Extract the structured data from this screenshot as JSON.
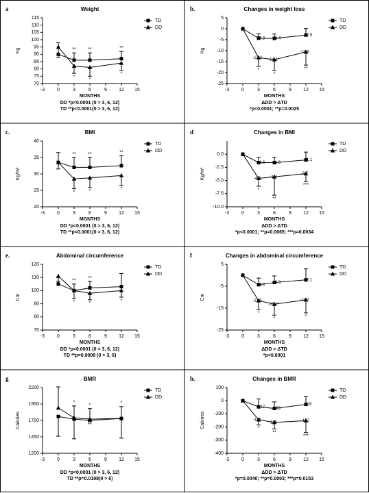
{
  "chart_data": [
    {
      "type": "line",
      "panel": "a",
      "title": "Weight",
      "ylabel": "Kg",
      "xlabel": "MONTHS",
      "x": [
        0,
        3,
        6,
        12
      ],
      "xlim": [
        -3,
        15
      ],
      "xticks": [
        -3,
        0,
        3,
        6,
        9,
        12,
        15
      ],
      "ylim": [
        70,
        115
      ],
      "yticks": [
        70,
        75,
        80,
        85,
        90,
        95,
        100,
        105,
        110,
        115
      ],
      "series": [
        {
          "name": "TD",
          "color": "#000000",
          "marker": "square",
          "error_direction": "up",
          "values": [
            90,
            86,
            86,
            87
          ],
          "errors": [
            8,
            5,
            5,
            5
          ],
          "sig": [
            null,
            "**",
            "**",
            "**"
          ]
        },
        {
          "name": "DD",
          "color": "#000000",
          "marker": "triangle",
          "error_direction": "down",
          "values": [
            95,
            82,
            81,
            84
          ],
          "errors": [
            7,
            5,
            6,
            5
          ],
          "sig": [
            null,
            "*",
            "*",
            "*"
          ]
        }
      ],
      "notes": [
        "DD *p<0.0001 (0 > 3, 6, 12)",
        "TD **p<0.0001(0 > 3, 6, 12)"
      ]
    },
    {
      "type": "line",
      "panel": "b.",
      "title": "Changes in weight loss",
      "ylabel": "Kg",
      "xlabel": "MONTHS",
      "x": [
        0,
        3,
        6,
        12
      ],
      "xlim": [
        -3,
        15
      ],
      "xticks": [
        -3,
        0,
        3,
        6,
        9,
        12,
        15
      ],
      "ylim": [
        -25,
        5
      ],
      "yticks": [
        5,
        0,
        -5,
        -10,
        -15,
        -20,
        -25
      ],
      "series": [
        {
          "name": "TD",
          "color": "#000000",
          "marker": "square",
          "error_direction": "up",
          "values": [
            0,
            -4.3,
            -4.4,
            -2.9
          ],
          "value_labels": [
            null,
            "-4.3",
            "-4.4",
            "-2.9"
          ],
          "errors": [
            null,
            2,
            2,
            3
          ]
        },
        {
          "name": "DD",
          "color": "#000000",
          "marker": "triangle",
          "error_direction": "down",
          "values": [
            0,
            -13.2,
            -14.1,
            -10.6
          ],
          "value_labels": [
            null,
            "-13.2",
            "-14.1",
            "-10.6"
          ],
          "errors": [
            null,
            4,
            5,
            6
          ],
          "sig": [
            null,
            "*",
            "*",
            "**"
          ]
        }
      ],
      "notes": [
        "ΔDD > ΔTD",
        "*p<0.0001; **p=0.0025"
      ]
    },
    {
      "type": "line",
      "panel": "c.",
      "title": "BMI",
      "ylabel": "Kg/m²",
      "xlabel": "MONTHS",
      "x": [
        0,
        3,
        6,
        12
      ],
      "xlim": [
        -3,
        15
      ],
      "xticks": [
        -3,
        0,
        3,
        6,
        9,
        12,
        15
      ],
      "ylim": [
        20,
        40
      ],
      "yticks": [
        20,
        25,
        30,
        35,
        40
      ],
      "series": [
        {
          "name": "TD",
          "color": "#000000",
          "marker": "square",
          "error_direction": "up",
          "values": [
            33.5,
            32,
            32,
            32.5
          ],
          "errors": [
            3,
            3,
            3,
            3
          ],
          "sig": [
            null,
            "**",
            "**",
            "**"
          ]
        },
        {
          "name": "DD",
          "color": "#000000",
          "marker": "triangle",
          "error_direction": "down",
          "values": [
            33.5,
            28.5,
            28.8,
            29.5
          ],
          "errors": [
            2,
            3,
            3,
            3
          ],
          "sig": [
            null,
            "*",
            "*",
            "*"
          ]
        }
      ],
      "notes": [
        "DD *p<0.0001 (0 > 3, 6, 12)",
        "TD **p<0.0001(0 > 3, 6, 12)"
      ]
    },
    {
      "type": "line",
      "panel": "d",
      "title": "Changes in BMI",
      "ylabel": "Kg/m²",
      "xlabel": "MONTHS",
      "x": [
        0,
        3,
        6,
        12
      ],
      "xlim": [
        -3,
        15
      ],
      "xticks": [
        -3,
        0,
        3,
        6,
        9,
        12,
        15
      ],
      "ylim": [
        -10,
        2.5
      ],
      "yticks": [
        {
          "value": 0,
          "label": "0.0"
        },
        {
          "value": -2.5,
          "label": "-2.5"
        },
        {
          "value": -5,
          "label": "-5.0"
        },
        {
          "value": -7.5,
          "label": "-7.5"
        },
        {
          "value": -10,
          "label": "-10.0"
        }
      ],
      "series": [
        {
          "name": "TD",
          "color": "#000000",
          "marker": "square",
          "error_direction": "up",
          "values": [
            0,
            -1.6,
            -1.6,
            -1.1
          ],
          "value_labels": [
            null,
            "-1.6",
            "-1.6",
            "-1.1"
          ],
          "errors": [
            null,
            1,
            1,
            1.5
          ]
        },
        {
          "name": "DD",
          "color": "#000000",
          "marker": "triangle",
          "error_direction": "down",
          "values": [
            0,
            -4.6,
            -4.3,
            -3.7
          ],
          "value_labels": [
            null,
            "-4.6",
            "-4.3",
            "-3.7"
          ],
          "errors": [
            null,
            1.5,
            3.5,
            1.5
          ],
          "sig": [
            null,
            "*",
            "**",
            "***"
          ]
        }
      ],
      "notes": [
        "ΔDD > ΔTD",
        "*p<0.0001; **p=0.0065; ***p=0.0034"
      ]
    },
    {
      "type": "line",
      "panel": "e.",
      "title": "Abdominal circumference",
      "ylabel": "Cm",
      "xlabel": "MONTHS",
      "x": [
        0,
        3,
        6,
        12
      ],
      "xlim": [
        -3,
        15
      ],
      "xticks": [
        -3,
        0,
        3,
        6,
        9,
        12,
        15
      ],
      "ylim": [
        70,
        120
      ],
      "yticks": [
        70,
        80,
        90,
        100,
        110,
        120
      ],
      "series": [
        {
          "name": "TD",
          "color": "#000000",
          "marker": "square",
          "error_direction": "up",
          "values": [
            105,
            100,
            102,
            103
          ],
          "errors": [
            5,
            5,
            5,
            10
          ],
          "sig": [
            null,
            "**",
            "**",
            null
          ]
        },
        {
          "name": "DD",
          "color": "#000000",
          "marker": "triangle",
          "error_direction": "down",
          "values": [
            111,
            100,
            98,
            100
          ],
          "errors": [
            4,
            6,
            5,
            5
          ],
          "sig": [
            null,
            "*",
            "*",
            "*"
          ]
        }
      ],
      "notes": [
        "DD *p<0.0001 (0 > 3, 6, 12)",
        "TD **p=0.0008 (0 > 3, 6)"
      ]
    },
    {
      "type": "line",
      "panel": "f",
      "title": "Changes in abdominal circumference",
      "ylabel": "Cm",
      "xlabel": "MONTHS",
      "x": [
        0,
        3,
        6,
        12
      ],
      "xlim": [
        -3,
        15
      ],
      "xticks": [
        -3,
        0,
        3,
        6,
        9,
        12,
        15
      ],
      "ylim": [
        -25,
        5
      ],
      "yticks": [
        5,
        -5,
        -15,
        -25
      ],
      "series": [
        {
          "name": "TD",
          "color": "#000000",
          "marker": "square",
          "error_direction": "up",
          "values": [
            0,
            -4.3,
            -3.3,
            -2.1
          ],
          "value_labels": [
            null,
            "-4.3",
            "-3.3",
            "-2.1"
          ],
          "errors": [
            null,
            3,
            3,
            5
          ]
        },
        {
          "name": "DD",
          "color": "#000000",
          "marker": "triangle",
          "error_direction": "down",
          "values": [
            0,
            -11.6,
            -13.2,
            -11.2
          ],
          "value_labels": [
            null,
            "-11.6",
            "-13.2",
            "-11.2"
          ],
          "errors": [
            null,
            4,
            5,
            6
          ],
          "sig": [
            null,
            "*",
            "*",
            "*"
          ]
        }
      ],
      "notes": [
        "ΔDD > ΔTD",
        "*p<0.0001"
      ]
    },
    {
      "type": "line",
      "panel": "g",
      "title": "BMR",
      "ylabel": "Calories",
      "xlabel": "MONTHS",
      "x": [
        0,
        3,
        6,
        12
      ],
      "xlim": [
        -3,
        15
      ],
      "xticks": [
        -3,
        0,
        3,
        6,
        9,
        12,
        15
      ],
      "ylim": [
        1200,
        2200
      ],
      "yticks": [
        1200,
        1450,
        1700,
        1950,
        2200
      ],
      "series": [
        {
          "name": "TD",
          "color": "#000000",
          "marker": "square",
          "error_direction": "down",
          "values": [
            1760,
            1720,
            1700,
            1730
          ],
          "errors": [
            300,
            300,
            10,
            300
          ],
          "sig": [
            null,
            null,
            "**",
            null
          ]
        },
        {
          "name": "DD",
          "color": "#000000",
          "marker": "triangle",
          "error_direction": "up",
          "values": [
            1890,
            1740,
            1720,
            1730
          ],
          "errors": [
            320,
            180,
            160,
            180
          ],
          "sig": [
            null,
            "*",
            "*",
            "*"
          ]
        }
      ],
      "notes": [
        "DD *p<0.0001 (0 > 3, 6, 12)",
        "TD **p=0.0198(0 > 6)"
      ]
    },
    {
      "type": "line",
      "panel": "h.",
      "title": "Changes in BMR",
      "ylabel": "Calories",
      "xlabel": "MONTHS",
      "x": [
        0,
        3,
        6,
        12
      ],
      "xlim": [
        -3,
        15
      ],
      "xticks": [
        -3,
        0,
        3,
        6,
        9,
        12,
        15
      ],
      "ylim": [
        -400,
        100
      ],
      "yticks": [
        100,
        0,
        -100,
        -200,
        -300,
        -400
      ],
      "series": [
        {
          "name": "TD",
          "color": "#000000",
          "marker": "square",
          "error_direction": "up",
          "values": [
            0,
            -47,
            -59,
            -28
          ],
          "value_labels": [
            null,
            "- 47",
            "- 59",
            "-28"
          ],
          "errors": [
            null,
            60,
            50,
            60
          ]
        },
        {
          "name": "DD",
          "color": "#000000",
          "marker": "triangle",
          "error_direction": "down",
          "values": [
            0,
            -145,
            -165,
            -152
          ],
          "value_labels": [
            null,
            "-145",
            "-165",
            "- 152"
          ],
          "errors": [
            null,
            40,
            50,
            90
          ],
          "sig": [
            null,
            "*",
            "**",
            "***"
          ]
        }
      ],
      "notes": [
        "ΔDD > ΔTD",
        "*p=0.0040; **p=0.0003; ***p=0.0153"
      ]
    }
  ]
}
